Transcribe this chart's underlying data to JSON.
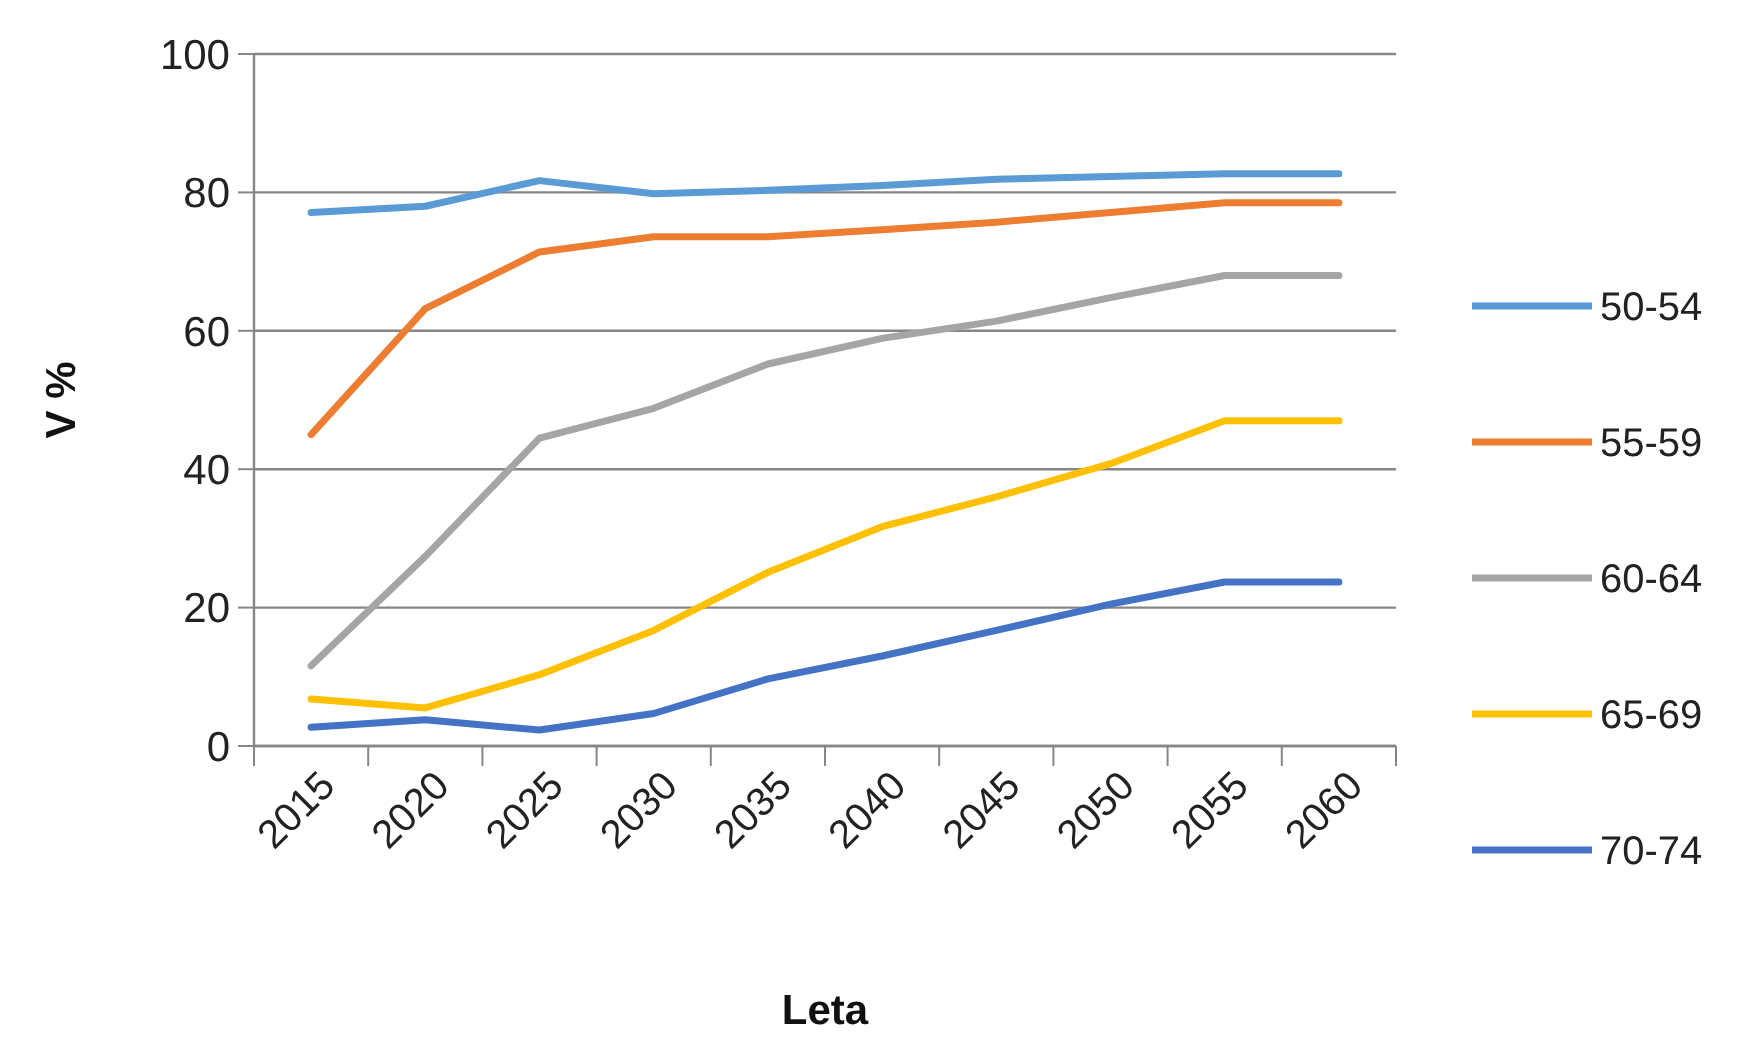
{
  "chart_data": {
    "type": "line",
    "xlabel": "Leta",
    "ylabel": "V %",
    "categories": [
      "2015",
      "2020",
      "2025",
      "2030",
      "2035",
      "2040",
      "2045",
      "2050",
      "2055",
      "2060"
    ],
    "series": [
      {
        "name": "50-54",
        "color": "#5b9bd5",
        "values": [
          77.1,
          78,
          81.7,
          79.8,
          80.3,
          81,
          81.9,
          82.3,
          82.7,
          82.7
        ]
      },
      {
        "name": "55-59",
        "color": "#ed7d31",
        "values": [
          45,
          63.2,
          71.4,
          73.6,
          73.6,
          74.6,
          75.7,
          77.1,
          78.5,
          78.5
        ]
      },
      {
        "name": "60-64",
        "color": "#a5a5a5",
        "values": [
          11.6,
          27.4,
          44.5,
          48.8,
          55.2,
          58.9,
          61.4,
          64.8,
          68,
          68
        ]
      },
      {
        "name": "65-69",
        "color": "#ffc000",
        "values": [
          6.8,
          5.5,
          10.3,
          16.7,
          25.1,
          31.7,
          36,
          40.8,
          47,
          47
        ]
      },
      {
        "name": "70-74",
        "color": "#4472c4",
        "values": [
          2.7,
          3.8,
          2.3,
          4.7,
          9.7,
          13,
          16.7,
          20.5,
          23.7,
          23.7
        ]
      }
    ],
    "ylim": [
      0,
      100
    ],
    "yticks": [
      0,
      20,
      40,
      60,
      80,
      100
    ],
    "grid": "y",
    "legend": "right",
    "marker": "none",
    "line_style": "solid"
  }
}
